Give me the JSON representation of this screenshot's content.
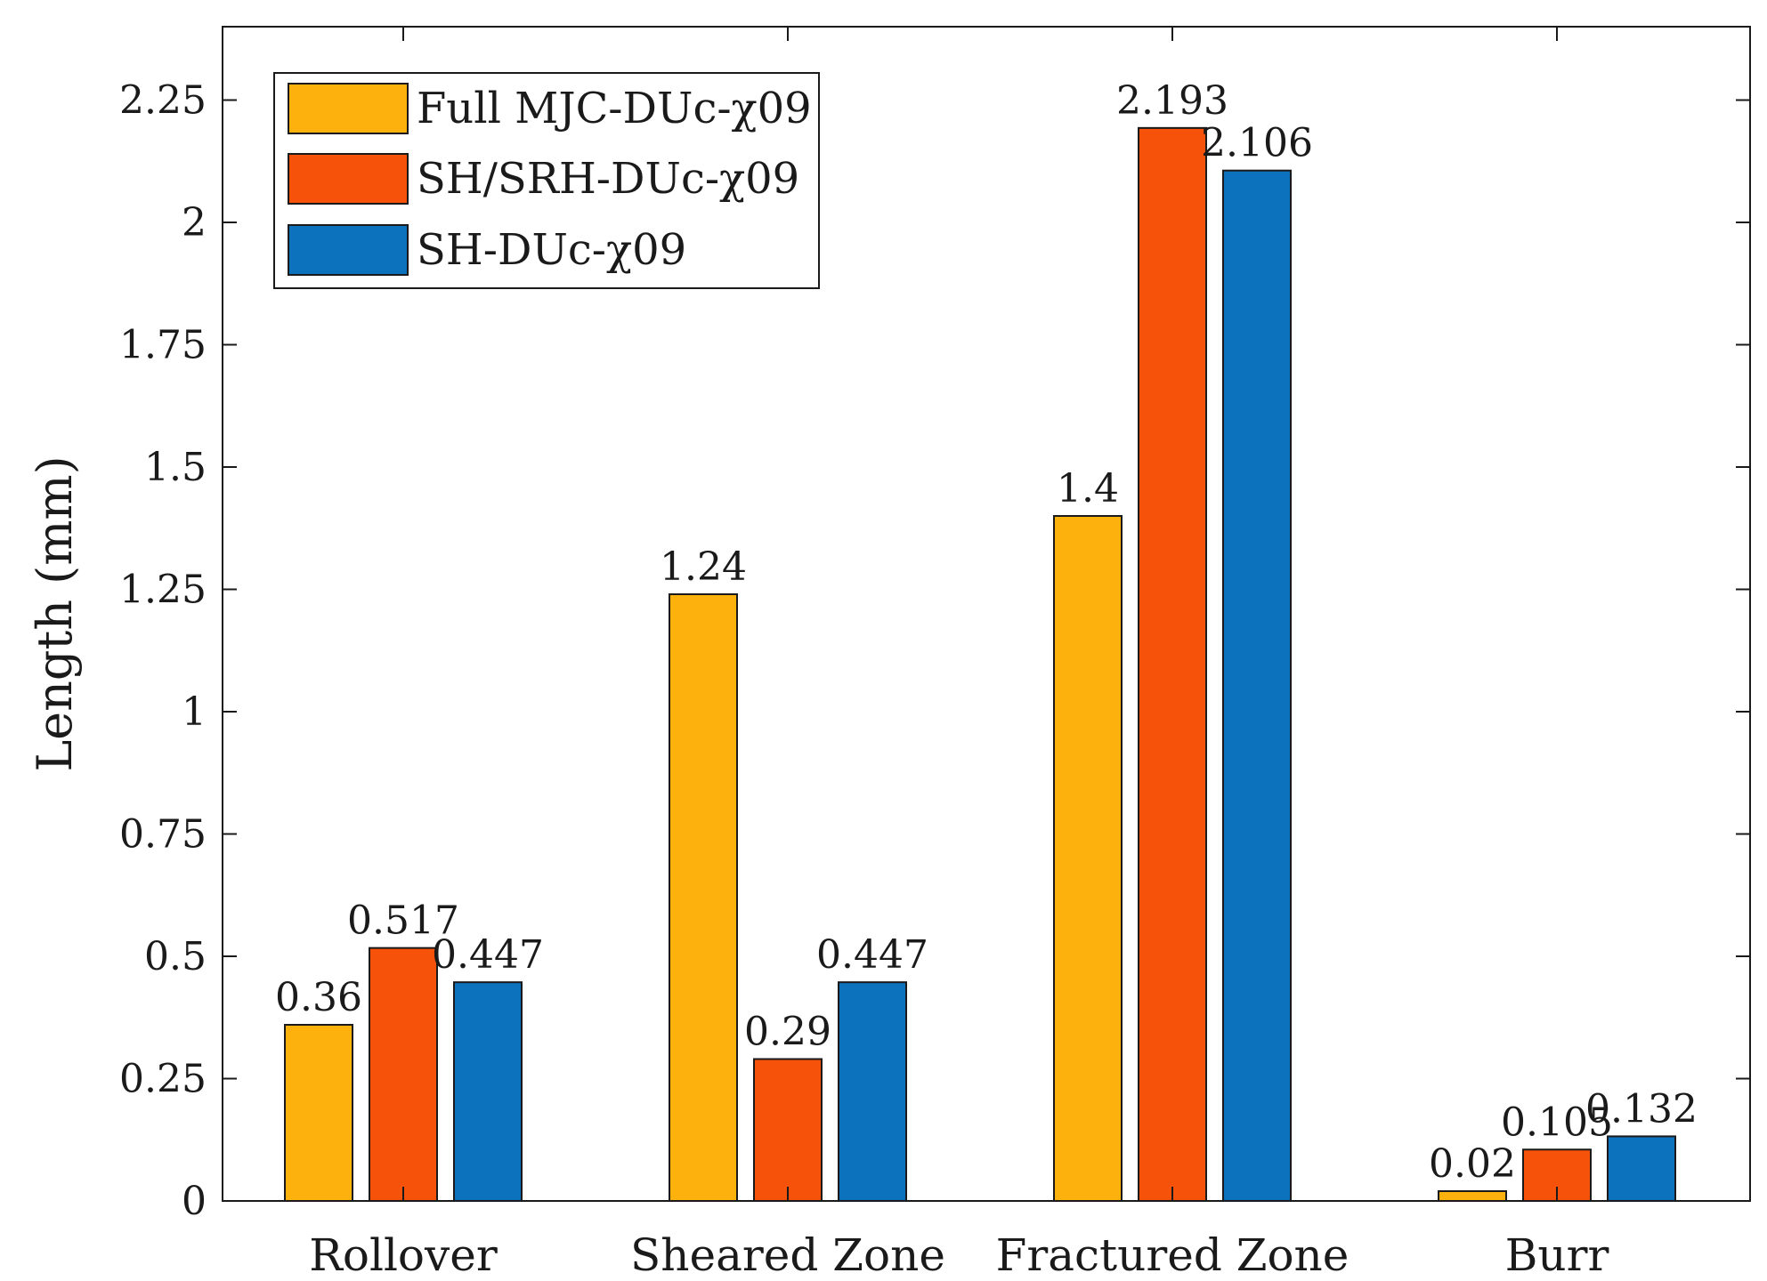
{
  "chart_data": {
    "type": "bar",
    "title": "",
    "xlabel": "",
    "ylabel": "Length (mm)",
    "ylim": [
      0,
      2.4
    ],
    "yticks": [
      0,
      0.25,
      0.5,
      0.75,
      1,
      1.25,
      1.5,
      1.75,
      2,
      2.25
    ],
    "ytick_labels": [
      "0",
      "0.25",
      "0.5",
      "0.75",
      "1",
      "1.25",
      "1.5",
      "1.75",
      "2",
      "2.25"
    ],
    "grid": false,
    "legend_position": "top-left",
    "categories": [
      "Rollover",
      "Sheared Zone",
      "Fractured Zone",
      "Burr"
    ],
    "series": [
      {
        "name": "Full MJC-DUc-χ09",
        "color": "#FDB10C",
        "values": [
          0.36,
          1.24,
          1.4,
          0.02
        ],
        "labels": [
          "0.36",
          "1.24",
          "1.4",
          "0.02"
        ]
      },
      {
        "name": "SH/SRH-DUc-χ09",
        "color": "#F6520A",
        "values": [
          0.517,
          0.29,
          2.193,
          0.105
        ],
        "labels": [
          "0.517",
          "0.29",
          "2.193",
          "0.105"
        ]
      },
      {
        "name": "SH-DUc-χ09",
        "color": "#0C72BE",
        "values": [
          0.447,
          0.447,
          2.106,
          0.132
        ],
        "labels": [
          "0.447",
          "0.447",
          "2.106",
          "0.132"
        ]
      }
    ]
  }
}
